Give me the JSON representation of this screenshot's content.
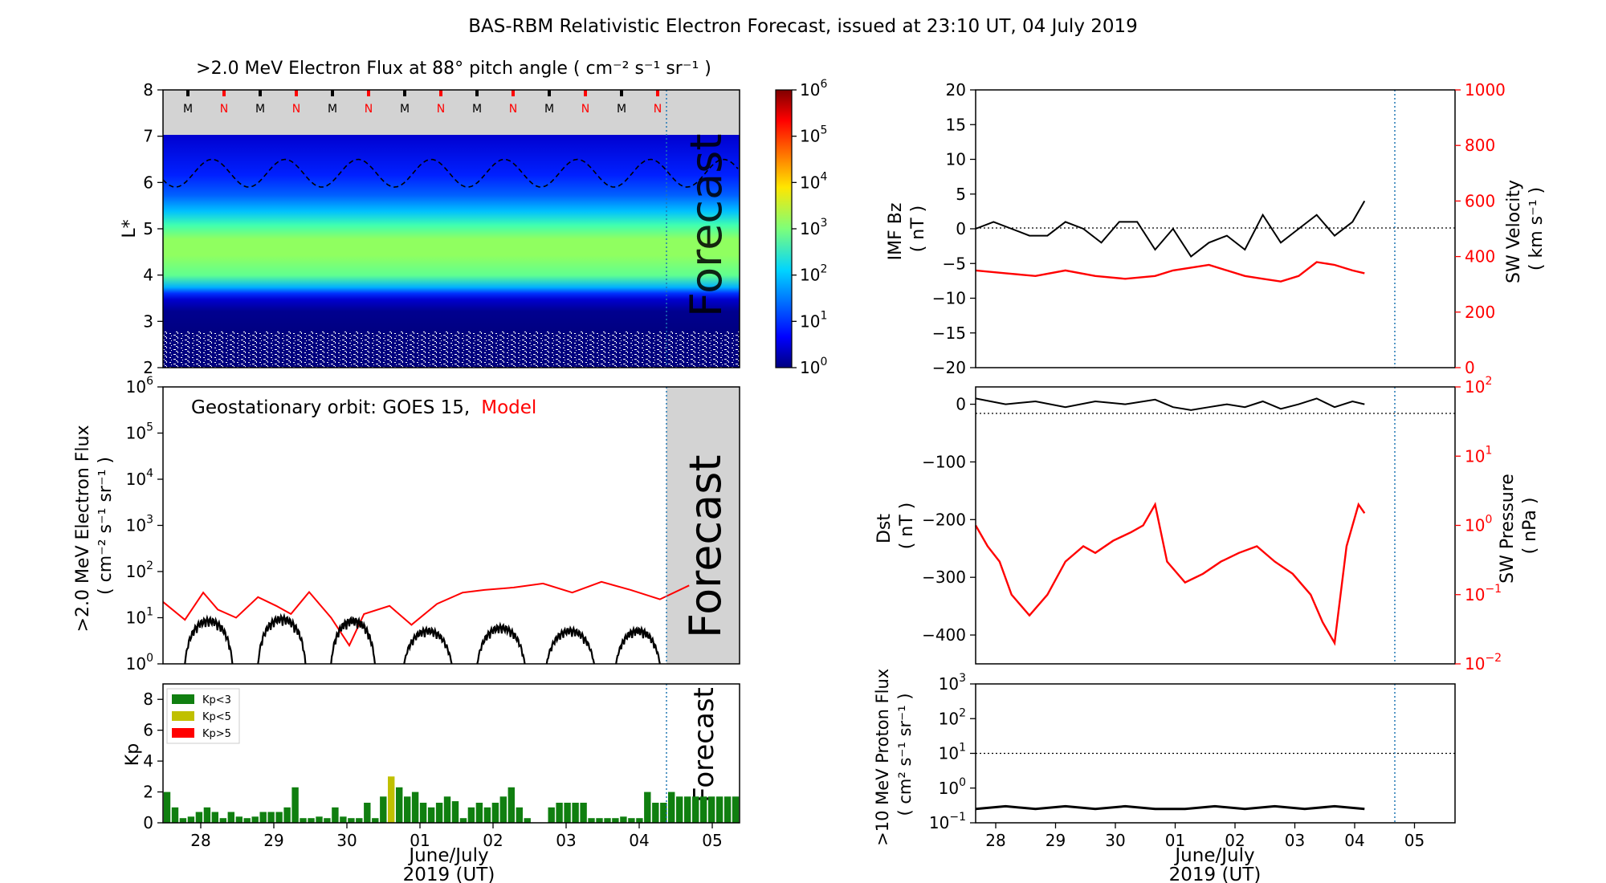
{
  "figure_title": "BAS-RBM Relativistic Electron Forecast, issued at 23:10 UT, 04 July 2019",
  "colors": {
    "black": "#000000",
    "red": "#ff0000",
    "green": "#107f10",
    "olive": "#c0c000",
    "grey": "#d3d3d3",
    "forecast_line": "#1f77b4"
  },
  "x_axis": {
    "ticks": [
      "28",
      "29",
      "30",
      "01",
      "02",
      "03",
      "04",
      "05"
    ],
    "label_line1": "June/July",
    "label_line2": "2019 (UT)"
  },
  "chart_data": [
    {
      "id": "flux-map",
      "type": "heatmap",
      "title": ">2.0 MeV Electron Flux at 88° pitch angle ( cm⁻² s⁻¹ sr⁻¹ )",
      "ylabel": "L*",
      "ylim": [
        2,
        8
      ],
      "yticks": [
        "2",
        "3",
        "4",
        "5",
        "6",
        "7",
        "8"
      ],
      "markers": [
        "M",
        "N",
        "M",
        "N",
        "M",
        "N",
        "M",
        "N",
        "M",
        "N",
        "M",
        "N",
        "M",
        "N"
      ],
      "forecast_label": "Forecast",
      "colorbar": {
        "scale": "log",
        "range": [
          1,
          1000000
        ],
        "tick_base": "10",
        "tick_exponents": [
          "0",
          "1",
          "2",
          "3",
          "4",
          "5",
          "6"
        ]
      },
      "profile": [
        {
          "L": 2.0,
          "log_flux": 0.3
        },
        {
          "L": 2.8,
          "log_flux": 0.3
        },
        {
          "L": 3.0,
          "log_flux": 0.5
        },
        {
          "L": 3.3,
          "log_flux": 1.3
        },
        {
          "L": 3.6,
          "log_flux": 2.5
        },
        {
          "L": 4.0,
          "log_flux": 2.8
        },
        {
          "L": 4.5,
          "log_flux": 2.9
        },
        {
          "L": 5.0,
          "log_flux": 2.6
        },
        {
          "L": 5.5,
          "log_flux": 1.9
        },
        {
          "L": 6.0,
          "log_flux": 1.3
        },
        {
          "L": 6.5,
          "log_flux": 1.0
        },
        {
          "L": 7.0,
          "log_flux": 0.8
        }
      ],
      "magnetopause_L_range": [
        5.9,
        6.5
      ]
    },
    {
      "id": "geo-flux",
      "type": "line",
      "ylabel_line1": ">2.0 MeV Electron Flux",
      "ylabel_line2": "( cm⁻² s⁻¹ sr⁻¹ )",
      "ylog": true,
      "ylim": [
        1,
        1000000
      ],
      "ytick_exponents": [
        "0",
        "1",
        "2",
        "3",
        "4",
        "5",
        "6"
      ],
      "legend_prefix": "Geostationary orbit:   GOES 15,",
      "legend_model": "Model",
      "forecast_label": "Forecast",
      "series": [
        {
          "name": "Model",
          "color": "#ff0000",
          "x": [
            0,
            0.3,
            0.55,
            0.75,
            1.0,
            1.3,
            1.55,
            1.75,
            2.0,
            2.3,
            2.55,
            2.75,
            3.1,
            3.4,
            3.75,
            4.1,
            4.4,
            4.8,
            5.2,
            5.6,
            6.0,
            6.4,
            6.8,
            7.2
          ],
          "y": [
            22,
            9,
            35,
            15,
            10,
            28,
            18,
            12,
            36,
            10,
            2.5,
            12,
            18,
            7,
            20,
            35,
            40,
            45,
            55,
            35,
            60,
            40,
            25,
            50
          ]
        },
        {
          "name": "GOES 15",
          "color": "#000000",
          "segments": [
            [
              0.3,
              0.95
            ],
            [
              1.3,
              1.95
            ],
            [
              2.3,
              2.9
            ],
            [
              3.3,
              3.95
            ],
            [
              4.3,
              4.95
            ],
            [
              5.25,
              5.9
            ],
            [
              6.2,
              6.8
            ]
          ],
          "peak_values": [
            10,
            11,
            10,
            6,
            7,
            6,
            6
          ]
        }
      ]
    },
    {
      "id": "kp",
      "type": "bar",
      "ylabel": "Kp",
      "ylim": [
        0,
        9
      ],
      "yticks": [
        "0",
        "2",
        "4",
        "6",
        "8"
      ],
      "legend": [
        "Kp<3",
        "Kp<5",
        "Kp>5"
      ],
      "forecast_label": "Forecast",
      "values": [
        2.0,
        1.0,
        0.3,
        0.4,
        0.7,
        1.0,
        0.7,
        0.3,
        0.7,
        0.4,
        0.3,
        0.4,
        0.7,
        0.7,
        0.7,
        1.0,
        2.3,
        0.3,
        0.3,
        0.4,
        0.3,
        1.0,
        0.4,
        0.3,
        0.3,
        1.3,
        0.3,
        1.7,
        3.0,
        2.3,
        1.7,
        2.0,
        1.3,
        1.0,
        1.3,
        1.7,
        1.4,
        0.3,
        1.0,
        1.3,
        1.0,
        1.3,
        1.7,
        2.3,
        1.0,
        0.3,
        0,
        0,
        1.0,
        1.3,
        1.3,
        1.3,
        1.3,
        0.3,
        0.3,
        0.3,
        0.3,
        0.4,
        0.3,
        0.3,
        2.0,
        1.3,
        1.3,
        2.0,
        1.7,
        1.7,
        1.7,
        1.7,
        1.7,
        1.7,
        1.7,
        1.7
      ]
    },
    {
      "id": "imf-sw",
      "type": "line",
      "ylabel_line1": "IMF Bz",
      "ylabel_line2": "( nT )",
      "ylim": [
        -20,
        20
      ],
      "yticks": [
        "−20",
        "−15",
        "−10",
        "−5",
        "0",
        "5",
        "10",
        "15",
        "20"
      ],
      "y2label_line1": "SW Velocity",
      "y2label_line2": "( km s⁻¹ )",
      "y2lim": [
        0,
        1000
      ],
      "y2ticks": [
        "0",
        "200",
        "400",
        "600",
        "800",
        "1000"
      ],
      "series": [
        {
          "name": "IMF Bz",
          "color": "#000000",
          "x": [
            0,
            0.3,
            0.6,
            0.9,
            1.2,
            1.5,
            1.8,
            2.1,
            2.4,
            2.7,
            3.0,
            3.3,
            3.6,
            3.9,
            4.2,
            4.5,
            4.8,
            5.1,
            5.4,
            5.7,
            6.0,
            6.3,
            6.5
          ],
          "y": [
            0,
            1,
            0,
            -1,
            -1,
            1,
            0,
            -2,
            1,
            1,
            -3,
            0,
            -4,
            -2,
            -1,
            -3,
            2,
            -2,
            0,
            2,
            -1,
            1,
            4
          ]
        },
        {
          "name": "SW Velocity",
          "color": "#ff0000",
          "x": [
            0,
            0.5,
            1.0,
            1.5,
            2.0,
            2.5,
            3.0,
            3.3,
            3.6,
            3.9,
            4.2,
            4.5,
            4.8,
            5.1,
            5.4,
            5.7,
            6.0,
            6.3,
            6.5
          ],
          "y": [
            350,
            340,
            330,
            350,
            330,
            320,
            330,
            350,
            360,
            370,
            350,
            330,
            320,
            310,
            330,
            380,
            370,
            350,
            340
          ]
        }
      ]
    },
    {
      "id": "dst-pressure",
      "type": "line",
      "ylabel_line1": "Dst",
      "ylabel_line2": "( nT )",
      "ylim": [
        -450,
        30
      ],
      "yticks": [
        "−400",
        "−300",
        "−200",
        "−100",
        "0"
      ],
      "y2label_line1": "SW Pressure",
      "y2label_line2": "( nPa )",
      "y2log": true,
      "y2lim": [
        0.01,
        100
      ],
      "y2tick_exponents": [
        "−2",
        "−1",
        "0",
        "1",
        "2"
      ],
      "series": [
        {
          "name": "Dst",
          "color": "#000000",
          "x": [
            0,
            0.5,
            1.0,
            1.5,
            2.0,
            2.5,
            3.0,
            3.3,
            3.6,
            3.9,
            4.2,
            4.5,
            4.8,
            5.1,
            5.4,
            5.7,
            6.0,
            6.3,
            6.5
          ],
          "y": [
            10,
            0,
            5,
            -5,
            5,
            0,
            8,
            -5,
            -10,
            -5,
            0,
            -5,
            5,
            -8,
            0,
            10,
            -5,
            5,
            0
          ]
        },
        {
          "name": "SW Pressure",
          "color": "#ff0000",
          "x": [
            0,
            0.2,
            0.4,
            0.6,
            0.9,
            1.2,
            1.5,
            1.8,
            2.0,
            2.3,
            2.6,
            2.8,
            3.0,
            3.2,
            3.5,
            3.8,
            4.1,
            4.4,
            4.7,
            5.0,
            5.3,
            5.6,
            5.8,
            6.0,
            6.2,
            6.4,
            6.5
          ],
          "y": [
            1.0,
            0.5,
            0.3,
            0.1,
            0.05,
            0.1,
            0.3,
            0.5,
            0.4,
            0.6,
            0.8,
            1.0,
            2.0,
            0.3,
            0.15,
            0.2,
            0.3,
            0.4,
            0.5,
            0.3,
            0.2,
            0.1,
            0.04,
            0.02,
            0.5,
            2.0,
            1.5
          ]
        }
      ]
    },
    {
      "id": "proton-flux",
      "type": "line",
      "ylabel_line1": ">10 MeV Proton Flux",
      "ylabel_line2": "( cm² s⁻¹ sr⁻¹ )",
      "ylog": true,
      "ylim": [
        0.1,
        1000
      ],
      "ytick_exponents": [
        "−1",
        "0",
        "1",
        "2",
        "3"
      ],
      "threshold": 10,
      "series": [
        {
          "name": ">10 MeV Proton Flux",
          "color": "#000000",
          "x": [
            0,
            0.5,
            1.0,
            1.5,
            2.0,
            2.5,
            3.0,
            3.5,
            4.0,
            4.5,
            5.0,
            5.5,
            6.0,
            6.5
          ],
          "y": [
            0.25,
            0.3,
            0.25,
            0.3,
            0.25,
            0.3,
            0.25,
            0.25,
            0.3,
            0.25,
            0.3,
            0.25,
            0.3,
            0.25
          ]
        }
      ]
    }
  ]
}
